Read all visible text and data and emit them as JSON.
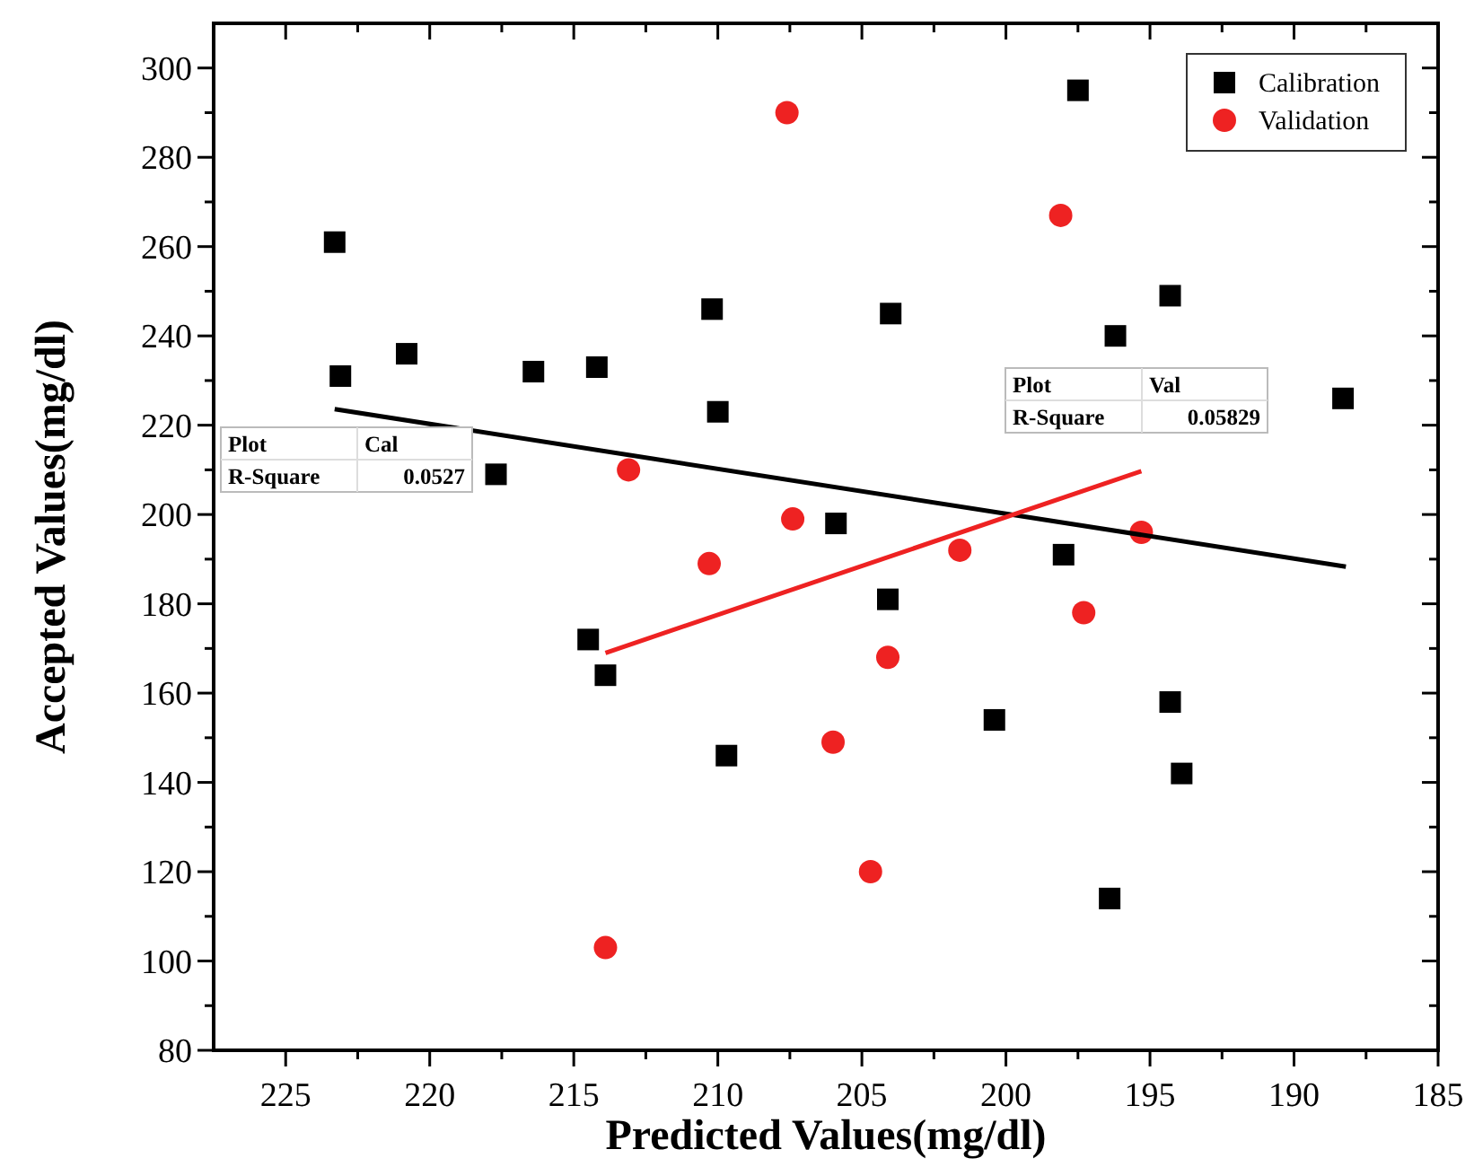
{
  "chart_data": {
    "type": "scatter",
    "xlabel": "Predicted Values(mg/dl)",
    "ylabel": "Accepted Values(mg/dl)",
    "xlim": [
      227.5,
      185
    ],
    "ylim": [
      80,
      310
    ],
    "xticks": [
      {
        "value": 225,
        "label": "225"
      },
      {
        "value": 222.5,
        "label": null
      },
      {
        "value": 220,
        "label": "220"
      },
      {
        "value": 217.5,
        "label": null
      },
      {
        "value": 215,
        "label": "215"
      },
      {
        "value": 212.5,
        "label": null
      },
      {
        "value": 210,
        "label": "210"
      },
      {
        "value": 207.5,
        "label": null
      },
      {
        "value": 205,
        "label": "205"
      },
      {
        "value": 202.5,
        "label": null
      },
      {
        "value": 200,
        "label": "200"
      },
      {
        "value": 197.5,
        "label": null
      },
      {
        "value": 195,
        "label": "195"
      },
      {
        "value": 192.5,
        "label": null
      },
      {
        "value": 190,
        "label": "190"
      },
      {
        "value": 187.5,
        "label": null
      },
      {
        "value": 185,
        "label": "185"
      }
    ],
    "yticks": [
      80,
      {
        "value": 90,
        "label": null
      },
      100,
      {
        "value": 110,
        "label": null
      },
      120,
      {
        "value": 130,
        "label": null
      },
      140,
      {
        "value": 150,
        "label": null
      },
      160,
      {
        "value": 170,
        "label": null
      },
      180,
      {
        "value": 190,
        "label": null
      },
      200,
      {
        "value": 210,
        "label": null
      },
      220,
      {
        "value": 230,
        "label": null
      },
      240,
      {
        "value": 250,
        "label": null
      },
      260,
      {
        "value": 270,
        "label": null
      },
      280,
      {
        "value": 290,
        "label": null
      },
      300
    ],
    "grid": false,
    "legend": "top right",
    "series": [
      {
        "name": "Calibration",
        "marker": "square",
        "color": "#000000",
        "x": [
          223.3,
          223.1,
          220.8,
          216.4,
          217.7,
          214.2,
          210.2,
          210.0,
          214.5,
          213.9,
          209.7,
          205.9,
          204.0,
          204.1,
          200.4,
          198.0,
          197.5,
          196.2,
          194.3,
          188.3,
          194.3,
          193.9,
          196.4
        ],
        "values": [
          261,
          231,
          236,
          232,
          209,
          233,
          246,
          223,
          172,
          164,
          146,
          198,
          245,
          181,
          154,
          191,
          295,
          240,
          249,
          226,
          158,
          142,
          114
        ]
      },
      {
        "name": "Validation",
        "marker": "circle",
        "color": "#ee2222",
        "x": [
          207.6,
          213.1,
          207.4,
          210.3,
          198.1,
          201.6,
          195.3,
          197.3,
          204.1,
          206.0,
          204.7,
          213.9
        ],
        "values": [
          290,
          210,
          199,
          189,
          267,
          192,
          196,
          178,
          168,
          149,
          120,
          103
        ]
      },
      {
        "type": "line",
        "color": "#000000",
        "x": [
          223.3,
          188.2
        ],
        "values": [
          223.6,
          188.3
        ]
      },
      {
        "type": "line",
        "color": "#ee2222",
        "x": [
          213.9,
          195.3
        ],
        "values": [
          169,
          209.7
        ]
      }
    ],
    "annotations": [
      "Plot",
      "Cal",
      "R-Square",
      "0.0527",
      "Plot",
      "Val",
      "R-Square",
      "0.05829"
    ]
  }
}
